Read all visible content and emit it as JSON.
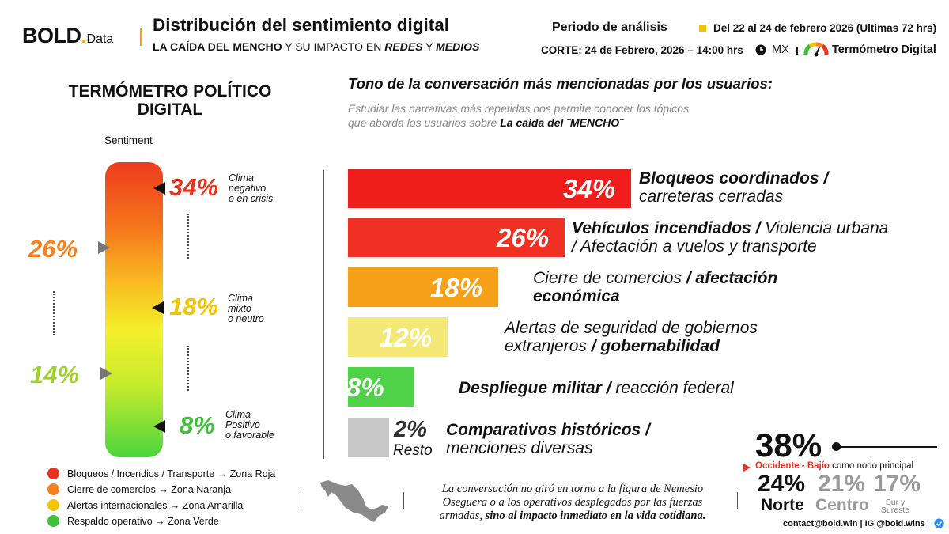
{
  "header": {
    "logo_main": "BOLD",
    "logo_dot": ".",
    "logo_sub": "Data",
    "title": "Distribución del sentimiento digital",
    "subtitle_a": "LA CAÍDA DEL MENCHO",
    "subtitle_b": " Y SU IMPACTO EN ",
    "subtitle_c": "REDES",
    "subtitle_d": " Y ",
    "subtitle_e": "MEDIOS",
    "period_label": "Periodo de análisis",
    "period_value": "Del 22 al 24 de febrero 2026  (Ultimas 72 hrs)",
    "corte": "CORTE: 24 de Febrero, 2026  – 14:00 hrs",
    "country": "MX",
    "separator": "I",
    "termometro_label": "Termómetro Digital"
  },
  "thermometer": {
    "title_line1": "TERMÓMETRO POLÍTICO",
    "title_line2": "DIGITAL",
    "sentiment_label": "Sentiment",
    "negative": {
      "pct": "34%",
      "l1": "Clima",
      "l2": "negativo",
      "l3": "o en crisis"
    },
    "mixed": {
      "pct": "18%",
      "l1": "Clima",
      "l2": "mixto",
      "l3": "o neutro"
    },
    "positive": {
      "pct": "8%",
      "l1": "Clima",
      "l2": "Positivo",
      "l3": "o favorable"
    },
    "left_26": "26%",
    "left_14": "14%"
  },
  "legend": [
    {
      "text": "Bloqueos / Incendios / Transporte → Zona Roja",
      "color": "#e8321e"
    },
    {
      "text": "Cierre de comercios → Zona Naranja",
      "color": "#f5821f"
    },
    {
      "text": "Alertas internacionales → Zona Amarilla",
      "color": "#f5c400"
    },
    {
      "text": "Respaldo operativo → Zona Verde",
      "color": "#3fbf3a"
    }
  ],
  "chart_header": {
    "title": "Tono de la conversación más mencionadas por los usuarios:",
    "sub_line1": "Estudiar las narrativas más repetidas nos permite conocer los tópicos",
    "sub_line2": "que aborda los usuarios sobre ",
    "sub_bold": "La caída del ¨MENCHO¨"
  },
  "chart_data": {
    "type": "bar",
    "orientation": "horizontal",
    "title": "Tono de la conversación más mencionadas por los usuarios:",
    "xlim": [
      0,
      34
    ],
    "series": [
      {
        "name": "Participación",
        "unit": "%",
        "values": [
          34,
          26,
          18,
          12,
          8,
          2
        ]
      }
    ],
    "labels": [
      "34%",
      "26%",
      "18%",
      "12%",
      "8%",
      "2%"
    ],
    "colors": [
      "#ef1d1b",
      "#ef3022",
      "#f6a118",
      "#f4e877",
      "#4fd148",
      "#c8c8c8"
    ],
    "categories": [
      "Bloqueos coordinados / carreteras cerradas",
      "Vehículos incendiados / Violencia urbana / Afectación a vuelos y transporte",
      "Cierre de comercios / afectación económica",
      "Alertas de seguridad de gobiernos extranjeros / gobernabilidad",
      "Despliegue militar / reacción federal",
      "Comparativos históricos / menciones diversas"
    ]
  },
  "category_text": {
    "c1_bold": "Bloqueos coordinados /",
    "c1_reg": "carreteras cerradas",
    "c2_bold": "Vehículos incendiados /",
    "c2_reg": " Violencia urbana",
    "c2_reg2": "/ Afectación a vuelos y transporte",
    "c3_reg": "Cierre de comercios ",
    "c3_bold": "/ afectación",
    "c3_bold2": "económica",
    "c4_reg": "Alertas de seguridad de gobiernos",
    "c4_reg2": "extranjeros ",
    "c4_bold": "/ gobernabilidad",
    "c5_bold": "Despliegue militar /",
    "c5_reg": " reacción federal",
    "c6_bold": "Comparativos históricos /",
    "c6_reg": "menciones diversas",
    "resto": "Resto"
  },
  "quote": {
    "line1": "La conversación no giró en torno a la figura de Nemesio",
    "line2": "Oseguera o a los operativos desplegados por las fuerzas",
    "line3a": "armadas, ",
    "line3b": "sino al impacto inmediato en la vida cotidiana."
  },
  "regions": {
    "main_pct": "38%",
    "main_name": "Occidente - Bajío",
    "main_desc": " como nodo principal",
    "norte_pct": "24%",
    "norte_name": "Norte",
    "centro_pct": "21%",
    "centro_name": "Centro",
    "sur_pct": "17%",
    "sur_name1": "Sur y",
    "sur_name2": "Sureste"
  },
  "footer": {
    "contact": "contact@bold.win  |  IG @bold.wins"
  }
}
